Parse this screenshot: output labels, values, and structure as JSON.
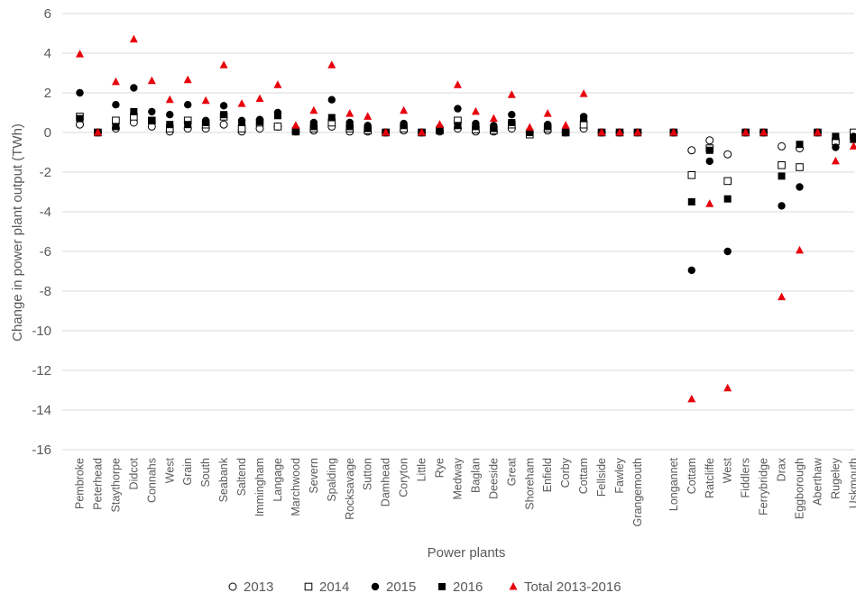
{
  "chart_data": {
    "type": "scatter",
    "title": "",
    "xlabel": "Power plants",
    "ylabel": "Change in power plant output (TWh)",
    "ylim": [
      -16,
      6
    ],
    "yticks": [
      6,
      4,
      2,
      0,
      -2,
      -4,
      -6,
      -8,
      -10,
      -12,
      -14,
      -16
    ],
    "grid": true,
    "legend_position": "bottom",
    "categories": [
      "Pembroke",
      "Peterhead",
      "Staythorpe",
      "Didcot",
      "Connahs",
      "West",
      "Grain",
      "South",
      "Seabank",
      "Saltend",
      "Immingham",
      "Langage",
      "Marchwood",
      "Severn",
      "Spalding",
      "Rocksavage",
      "Sutton",
      "Damhead",
      "Coryton",
      "Little",
      "Rye",
      "Medway",
      "Baglan",
      "Deeside",
      "Great",
      "Shoreham",
      "Enfield",
      "Corby",
      "Cottam",
      "Fellside",
      "Fawley",
      "Grangemouth",
      "",
      "Longannet",
      "Cottam",
      "Ratcliffe",
      "West",
      "Fiddlers",
      "Ferrybridge",
      "Drax",
      "Eggborough",
      "Aberthaw",
      "Rugeley",
      "Uskmouth"
    ],
    "series": [
      {
        "name": "2013",
        "marker": "circle-open",
        "color": "#000000",
        "values": [
          0.4,
          0,
          0.2,
          0.5,
          0.3,
          0.05,
          0.2,
          0.2,
          0.4,
          0.05,
          0.2,
          0.3,
          0.05,
          0.1,
          0.3,
          0.05,
          0.05,
          0,
          0.1,
          0,
          0.05,
          0.2,
          0.05,
          0.05,
          0.2,
          0,
          0.1,
          0,
          0.2,
          0,
          0,
          0,
          null,
          0,
          -0.9,
          -0.4,
          -1.1,
          0,
          0,
          -0.7,
          -0.8,
          0,
          -0.4,
          -0.3
        ]
      },
      {
        "name": "2014",
        "marker": "square-open",
        "color": "#000000",
        "values": [
          0.8,
          0,
          0.6,
          0.8,
          0.6,
          0.2,
          0.6,
          0.4,
          0.8,
          0.2,
          0.5,
          0.3,
          0.05,
          0.2,
          0.5,
          0.2,
          0.1,
          0,
          0.2,
          0,
          0.1,
          0.6,
          0.15,
          0.1,
          0.4,
          -0.1,
          0.2,
          0,
          0.4,
          0,
          0,
          0,
          null,
          0,
          -2.15,
          -0.8,
          -2.45,
          0,
          0,
          -1.65,
          -1.75,
          0,
          -0.45,
          0
        ]
      },
      {
        "name": "2015",
        "marker": "circle-filled",
        "color": "#000000",
        "values": [
          2.0,
          0,
          1.4,
          2.25,
          1.05,
          0.9,
          1.4,
          0.6,
          1.35,
          0.6,
          0.65,
          1.0,
          0.05,
          0.5,
          1.65,
          0.5,
          0.35,
          0,
          0.45,
          0,
          0.25,
          1.2,
          0.45,
          0.35,
          0.9,
          0,
          0.4,
          0.05,
          0.8,
          0,
          0,
          0,
          null,
          0,
          -6.95,
          -1.45,
          -6.0,
          0,
          0,
          -3.7,
          -2.75,
          0,
          -0.75,
          -0.2
        ]
      },
      {
        "name": "2016",
        "marker": "square-filled",
        "color": "#000000",
        "values": [
          0.7,
          0,
          0.3,
          1.05,
          0.6,
          0.4,
          0.4,
          0.5,
          0.9,
          0.5,
          0.55,
          0.85,
          0.1,
          0.3,
          0.75,
          0.3,
          0.2,
          0,
          0.35,
          0,
          0.1,
          0.35,
          0.3,
          0.2,
          0.5,
          0,
          0.3,
          0,
          0.7,
          0,
          0,
          0,
          null,
          0,
          -3.5,
          -0.9,
          -3.35,
          0,
          0,
          -2.2,
          -0.6,
          0,
          -0.2,
          -0.35
        ]
      },
      {
        "name": "Total 2013-2016",
        "marker": "triangle-filled",
        "color": "#e8000b",
        "values": [
          3.95,
          0,
          2.55,
          4.7,
          2.6,
          1.65,
          2.65,
          1.6,
          3.4,
          1.45,
          1.7,
          2.4,
          0.35,
          1.1,
          3.4,
          0.95,
          0.8,
          0,
          1.1,
          0,
          0.4,
          2.4,
          1.05,
          0.7,
          1.9,
          0.25,
          0.95,
          0.35,
          1.95,
          0,
          0,
          0,
          null,
          0,
          -13.45,
          -3.6,
          -12.9,
          0,
          0,
          -8.3,
          -5.95,
          0,
          -1.45,
          -0.7
        ]
      }
    ]
  }
}
